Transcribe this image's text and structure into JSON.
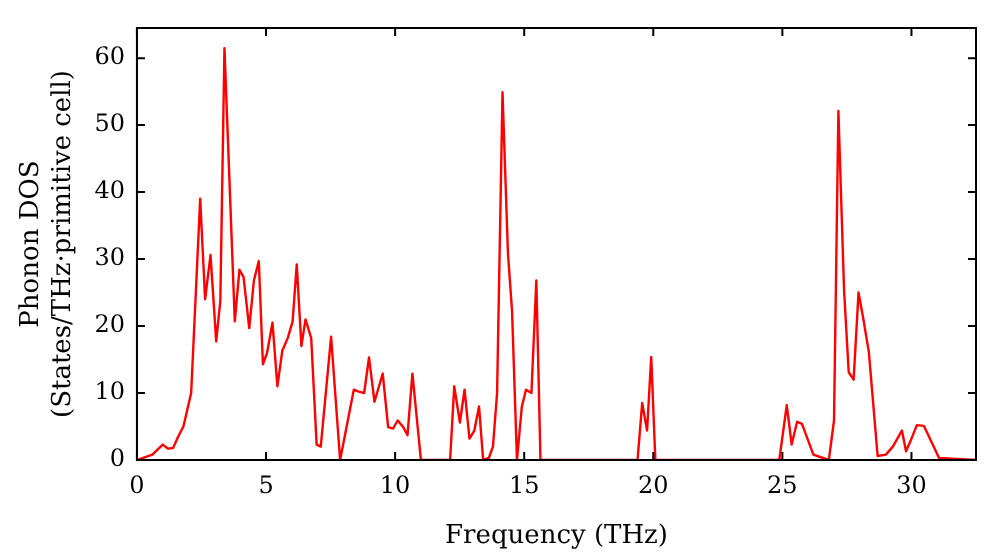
{
  "chart_data": {
    "type": "line",
    "xlabel": "Frequency (THz)",
    "ylabel": "Phonon DOS\n(States/THz·primitive cell)",
    "xlim": [
      0,
      32.5
    ],
    "ylim": [
      0,
      64.5
    ],
    "xticks": [
      0,
      5,
      10,
      15,
      20,
      25,
      30
    ],
    "yticks": [
      0,
      10,
      20,
      30,
      40,
      50,
      60
    ],
    "grid": false,
    "legend": false,
    "marker": "none",
    "line_style": "solid",
    "series": [
      {
        "color": "#ff0000",
        "x": [
          0,
          0.6,
          1.0,
          1.2,
          1.4,
          1.6,
          1.8,
          2.1,
          2.45,
          2.64,
          2.85,
          3.07,
          3.23,
          3.39,
          3.79,
          3.97,
          4.13,
          4.35,
          4.53,
          4.72,
          4.88,
          5.04,
          5.25,
          5.44,
          5.63,
          5.84,
          6.03,
          6.19,
          6.37,
          6.53,
          6.75,
          6.96,
          7.12,
          7.52,
          7.87,
          8.4,
          8.59,
          8.8,
          8.99,
          9.2,
          9.52,
          9.73,
          9.92,
          10.1,
          10.32,
          10.48,
          10.67,
          11.0,
          12.13,
          12.29,
          12.51,
          12.69,
          12.88,
          13.07,
          13.25,
          13.41,
          13.63,
          13.79,
          13.95,
          14.16,
          14.37,
          14.53,
          14.72,
          14.91,
          15.07,
          15.28,
          15.47,
          15.63,
          19.39,
          19.57,
          19.76,
          19.92,
          20.08,
          24.88,
          25.17,
          25.36,
          25.57,
          25.76,
          26.0,
          26.2,
          26.8,
          27.0,
          27.17,
          27.39,
          27.57,
          27.76,
          27.95,
          28.13,
          28.35,
          28.69,
          29.01,
          29.28,
          29.63,
          29.79,
          29.97,
          30.21,
          30.48,
          30.75,
          31.07,
          32.5
        ],
        "values": [
          0,
          0.8,
          2.3,
          1.7,
          1.8,
          3.5,
          5,
          10,
          39,
          24,
          30.6,
          17.7,
          23.8,
          61.5,
          20.7,
          28.4,
          27.3,
          19.7,
          26.8,
          29.7,
          14.3,
          16,
          20.5,
          11,
          16.3,
          18.2,
          20.7,
          29.2,
          17,
          21,
          18.2,
          2.3,
          2,
          18.4,
          0,
          10.5,
          10.2,
          10,
          15.3,
          8.7,
          12.9,
          4.9,
          4.7,
          5.9,
          4.9,
          3.7,
          12.9,
          0,
          0,
          11,
          5.6,
          10.5,
          3.2,
          4.4,
          8,
          0,
          0.3,
          2,
          10,
          54.9,
          30.9,
          22.2,
          0,
          8,
          10.5,
          10,
          26.8,
          0,
          0,
          8.5,
          4.4,
          15.4,
          0,
          0,
          8.2,
          2.3,
          5.7,
          5.4,
          2.9,
          0.8,
          0,
          5.9,
          52.1,
          25.3,
          13.1,
          12,
          25,
          21.2,
          16.1,
          0.6,
          0.8,
          2,
          4.4,
          1.3,
          2.9,
          5.2,
          5.1,
          2.9,
          0.3,
          0
        ]
      }
    ]
  }
}
